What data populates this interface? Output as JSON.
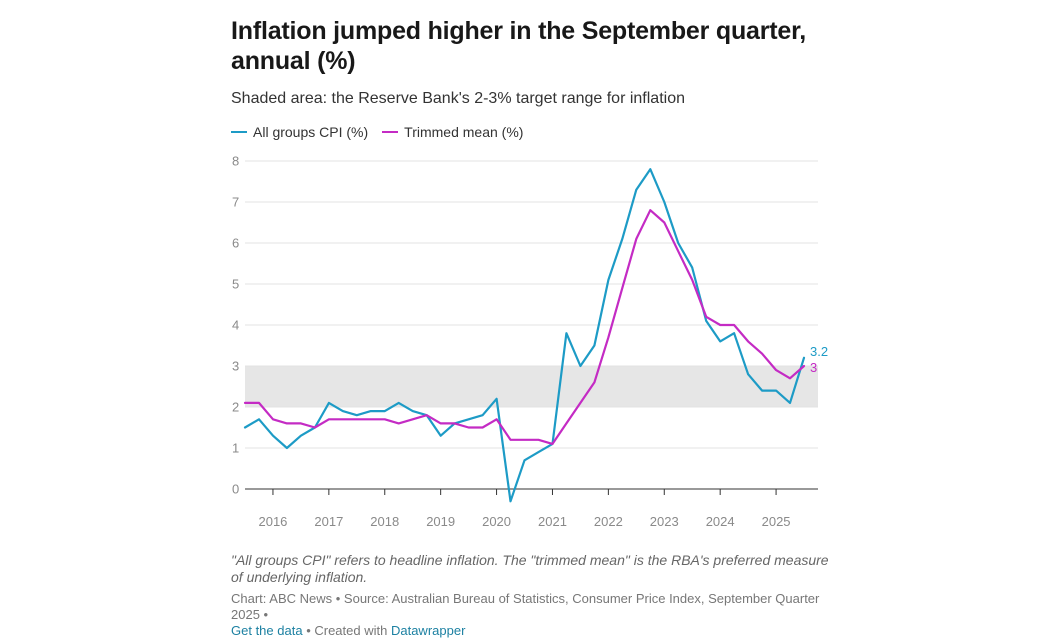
{
  "chart_data": {
    "type": "line",
    "title": "Inflation jumped higher in the September quarter, annual (%)",
    "subtitle": "Shaded area: the Reserve Bank's 2-3% target range for inflation",
    "ylim": [
      0,
      8
    ],
    "yticks": [
      "0",
      "1",
      "2",
      "3",
      "4",
      "5",
      "6",
      "7",
      "8"
    ],
    "xticks": [
      "2016",
      "2017",
      "2018",
      "2019",
      "2020",
      "2021",
      "2022",
      "2023",
      "2024",
      "2025"
    ],
    "target_band": [
      2,
      3
    ],
    "x_start": 2015.5,
    "x_step": 0.25,
    "series": [
      {
        "name": "All groups CPI (%)",
        "color": "#1d9bc6",
        "end_label": "3.2",
        "values": [
          1.5,
          1.7,
          1.3,
          1.0,
          1.3,
          1.5,
          2.1,
          1.9,
          1.8,
          1.9,
          1.9,
          2.1,
          1.9,
          1.8,
          1.3,
          1.6,
          1.7,
          1.8,
          2.2,
          -0.3,
          0.7,
          0.9,
          1.1,
          3.8,
          3.0,
          3.5,
          5.1,
          6.1,
          7.3,
          7.8,
          7.0,
          6.0,
          5.4,
          4.1,
          3.6,
          3.8,
          2.8,
          2.4,
          2.4,
          2.1,
          3.2
        ]
      },
      {
        "name": "Trimmed mean (%)",
        "color": "#c42bc4",
        "end_label": "3",
        "values": [
          2.1,
          2.1,
          1.7,
          1.6,
          1.6,
          1.5,
          1.7,
          1.7,
          1.7,
          1.7,
          1.7,
          1.6,
          1.7,
          1.8,
          1.6,
          1.6,
          1.5,
          1.5,
          1.7,
          1.2,
          1.2,
          1.2,
          1.1,
          1.6,
          2.1,
          2.6,
          3.7,
          4.9,
          6.1,
          6.8,
          6.5,
          5.8,
          5.1,
          4.2,
          4.0,
          4.0,
          3.6,
          3.3,
          2.9,
          2.7,
          3.0
        ]
      }
    ]
  },
  "note": "\"All groups CPI\" refers to headline inflation. The \"trimmed mean\" is the RBA's preferred measure of underlying inflation.",
  "footer": {
    "source": "Chart: ABC News • Source: Australian Bureau of Statistics, Consumer Price Index, September Quarter 2025 •",
    "get_data": "Get the data",
    "created_with": "• Created with",
    "datawrapper": "Datawrapper"
  }
}
